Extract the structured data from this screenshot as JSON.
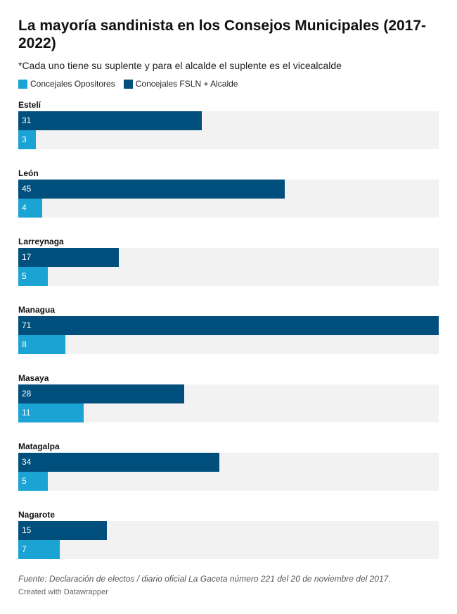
{
  "header": {
    "title": "La mayoría sandinista en los Consejos Municipales (2017-2022)",
    "subtitle": "*Cada uno tiene su suplente y para el alcalde el suplente es el vicealcalde"
  },
  "legend": [
    {
      "label": "Concejales Opositores",
      "color": "#1ba3d4"
    },
    {
      "label": "Concejales FSLN + Alcalde",
      "color": "#004f7c"
    }
  ],
  "chart_data": {
    "type": "bar",
    "orientation": "horizontal",
    "categories": [
      "Estelí",
      "León",
      "Larreynaga",
      "Managua",
      "Masaya",
      "Matagalpa",
      "Nagarote"
    ],
    "series": [
      {
        "name": "Concejales FSLN + Alcalde",
        "color": "#004f7c",
        "values": [
          31,
          45,
          17,
          71,
          28,
          34,
          15
        ]
      },
      {
        "name": "Concejales Opositores",
        "color": "#1ba3d4",
        "values": [
          3,
          4,
          5,
          8,
          11,
          5,
          7
        ]
      }
    ],
    "xlim": [
      0,
      71
    ],
    "grid": false
  },
  "footer": {
    "source": "Fuente: Declaración de electos / diario oficial La Gaceta número 221 del 20 de noviembre del 2017.",
    "credit": "Created with Datawrapper"
  }
}
